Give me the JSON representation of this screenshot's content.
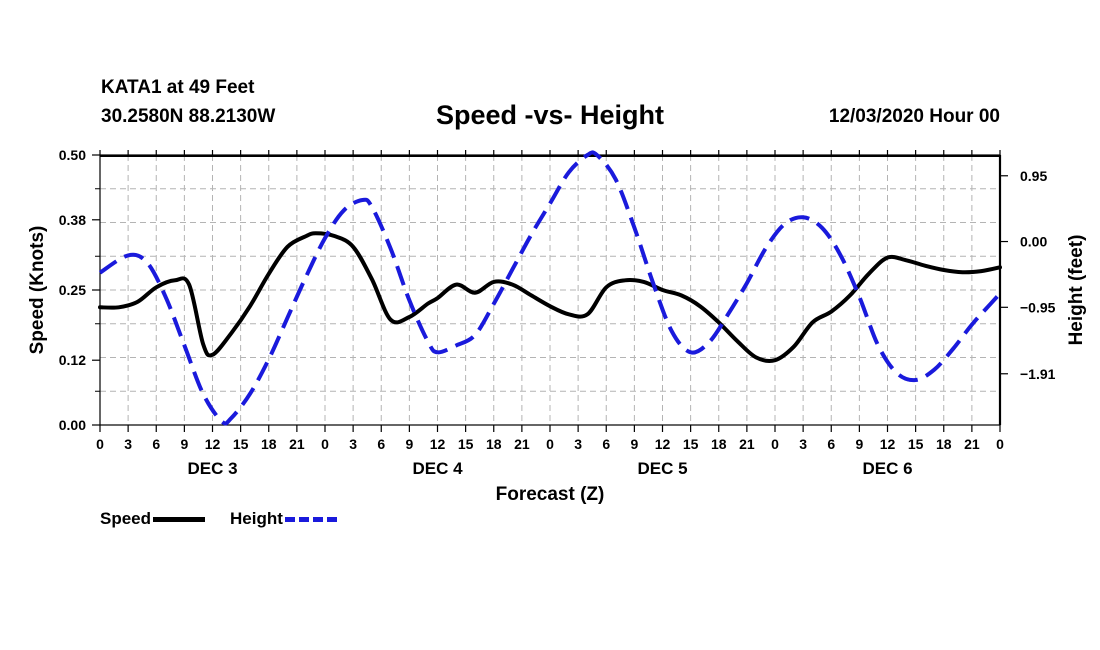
{
  "header": {
    "station": "KATA1 at 49 Feet",
    "coords": "30.2580N 88.2130W",
    "datetime": "12/03/2020 Hour 00"
  },
  "chart_data": {
    "type": "line",
    "title": "Speed -vs- Height",
    "xlabel": "Forecast (Z)",
    "ylabel": "Speed (Knots)",
    "y2label": "Height (feet)",
    "x_range_hours": [
      0,
      96
    ],
    "x_tick_labels": [
      "0",
      "3",
      "6",
      "9",
      "12",
      "15",
      "18",
      "21",
      "0",
      "3",
      "6",
      "9",
      "12",
      "15",
      "18",
      "21",
      "0",
      "3",
      "6",
      "9",
      "12",
      "15",
      "18",
      "21",
      "0",
      "3",
      "6",
      "9",
      "12",
      "15",
      "18",
      "21",
      "0"
    ],
    "day_labels": [
      {
        "label": "DEC 3",
        "hour": 12
      },
      {
        "label": "DEC 4",
        "hour": 36
      },
      {
        "label": "DEC 5",
        "hour": 60
      },
      {
        "label": "DEC 6",
        "hour": 84
      }
    ],
    "ylim": [
      0,
      0.5
    ],
    "y_ticks": [
      0.0,
      0.12,
      0.25,
      0.38,
      0.5
    ],
    "y_tick_labels": [
      "0.00",
      "0.12",
      "0.25",
      "0.38",
      "0.50"
    ],
    "y2lim": [
      -2.65,
      1.25
    ],
    "y2_ticks": [
      0.95,
      0.0,
      -0.95,
      -1.91
    ],
    "y2_tick_labels": [
      "0.95",
      "0.00",
      "−0.95",
      "−1.91"
    ],
    "grid": true,
    "series": [
      {
        "name": "Speed",
        "axis": "left",
        "color": "#000000",
        "style": "solid",
        "x": [
          0,
          2,
          4,
          6,
          8,
          9.5,
          11,
          12,
          14,
          16,
          18,
          20,
          22,
          23,
          25,
          27,
          29,
          31,
          33,
          35,
          36,
          38,
          40,
          42,
          44,
          46,
          48,
          50,
          52,
          54,
          56,
          58,
          60,
          62,
          64,
          66,
          68,
          70,
          72,
          74,
          76,
          78,
          80,
          82,
          84,
          86,
          88,
          90,
          92,
          94,
          96
        ],
        "values": [
          0.218,
          0.218,
          0.228,
          0.255,
          0.268,
          0.26,
          0.15,
          0.13,
          0.17,
          0.22,
          0.28,
          0.33,
          0.35,
          0.355,
          0.35,
          0.33,
          0.27,
          0.195,
          0.2,
          0.225,
          0.235,
          0.26,
          0.245,
          0.265,
          0.26,
          0.24,
          0.22,
          0.205,
          0.205,
          0.255,
          0.268,
          0.265,
          0.25,
          0.24,
          0.22,
          0.19,
          0.155,
          0.125,
          0.12,
          0.145,
          0.19,
          0.21,
          0.24,
          0.28,
          0.31,
          0.305,
          0.295,
          0.287,
          0.283,
          0.285,
          0.292
        ]
      },
      {
        "name": "Height",
        "axis": "right",
        "color": "#1a1adc",
        "style": "dashed",
        "x": [
          0,
          3,
          5,
          7,
          9,
          11,
          13,
          14,
          16,
          18,
          20,
          22,
          24,
          26,
          28,
          29,
          31,
          33,
          35,
          36,
          38,
          40,
          42,
          44,
          46,
          48,
          50,
          52,
          53,
          55,
          57,
          59,
          61,
          63,
          65,
          67,
          69,
          71,
          73,
          75,
          77,
          79,
          81,
          83,
          85,
          87,
          89,
          91,
          93,
          95,
          96
        ],
        "values": [
          -0.45,
          -0.2,
          -0.3,
          -0.8,
          -1.5,
          -2.2,
          -2.6,
          -2.55,
          -2.2,
          -1.7,
          -1.1,
          -0.5,
          0.05,
          0.45,
          0.6,
          0.5,
          -0.1,
          -0.85,
          -1.45,
          -1.6,
          -1.5,
          -1.35,
          -0.9,
          -0.4,
          0.1,
          0.55,
          1.0,
          1.25,
          1.25,
          0.9,
          0.2,
          -0.6,
          -1.3,
          -1.6,
          -1.45,
          -1.05,
          -0.6,
          -0.1,
          0.25,
          0.35,
          0.2,
          -0.2,
          -0.8,
          -1.5,
          -1.9,
          -2.0,
          -1.85,
          -1.55,
          -1.2,
          -0.9,
          -0.75
        ]
      }
    ]
  },
  "legend": {
    "speed_label": "Speed",
    "height_label": "Height"
  }
}
